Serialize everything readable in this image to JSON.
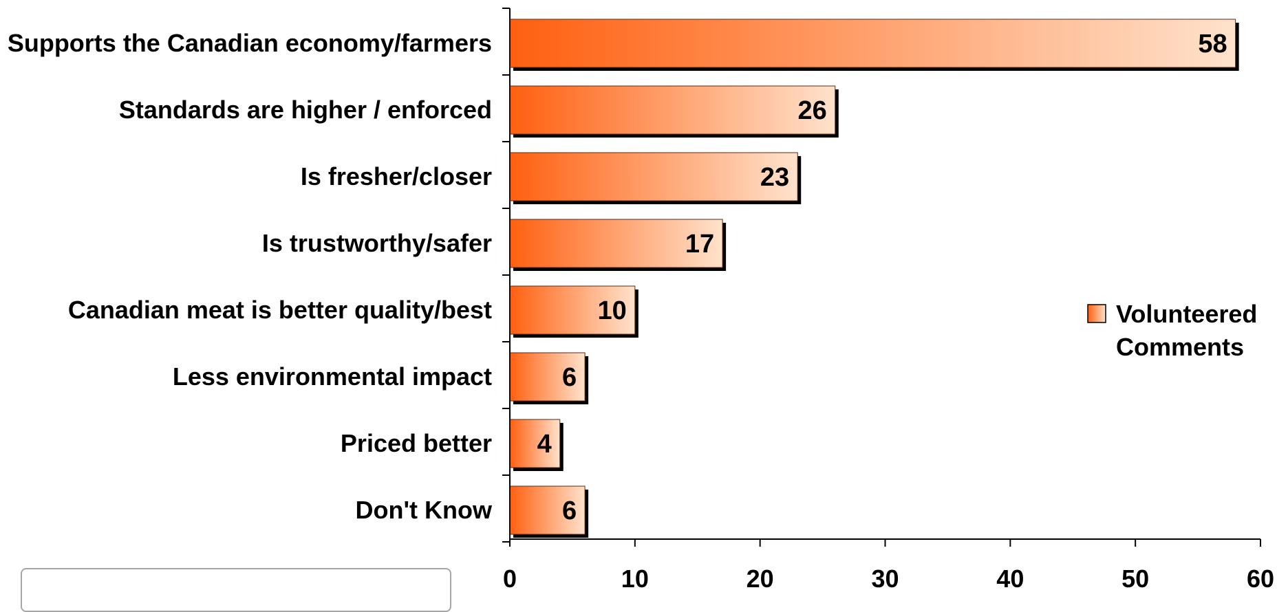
{
  "chart_data": {
    "type": "bar",
    "orientation": "horizontal",
    "categories": [
      "Supports the Canadian economy/farmers",
      "Standards are higher / enforced",
      "Is fresher/closer",
      "Is trustworthy/safer",
      "Canadian meat is better quality/best",
      "Less environmental impact",
      "Priced better",
      "Don't Know"
    ],
    "series": [
      {
        "name": "Volunteered Comments",
        "values": [
          58,
          26,
          23,
          17,
          10,
          6,
          4,
          6
        ]
      }
    ],
    "data_labels": [
      "58",
      "26",
      "23",
      "17",
      "10",
      "6",
      "4",
      "6"
    ],
    "xlim": [
      0,
      60
    ],
    "x_ticks": [
      0,
      10,
      20,
      30,
      40,
      50,
      60
    ],
    "x_tick_labels": [
      "0",
      "10",
      "20",
      "30",
      "40",
      "50",
      "60"
    ],
    "legend": {
      "label_lines": [
        "Volunteered",
        "Comments"
      ],
      "placement": "right"
    },
    "grid": false,
    "colors": {
      "bar_start": "#ff6010",
      "bar_end": "#ffe2cc",
      "shadow": "#000000",
      "axis": "#000000"
    }
  }
}
